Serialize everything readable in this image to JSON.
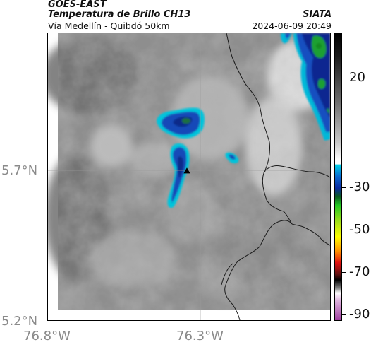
{
  "header": {
    "agency": "GOES-EAST",
    "product": "Temperatura de Brillo CH13",
    "organization": "SIATA",
    "route": "Vía Medellín - Quibdó 50km",
    "datetime": "2024-06-09 20:49"
  },
  "axes": {
    "y_ticks": [
      "5.7°N",
      "5.2°N"
    ],
    "x_ticks": [
      "76.8°W",
      "76.3°W"
    ]
  },
  "colorbar": {
    "labels": [
      "20",
      "-30",
      "-50",
      "-70",
      "-90"
    ],
    "colors": {
      "warm_gray": "#7a7a7a",
      "white": "#ffffff",
      "cyan": "#00c8e0",
      "blue": "#0a2aa0",
      "green": "#1fa81f",
      "yellow": "#ffff00",
      "red": "#e01010",
      "black": "#000000",
      "magenta": "#b04ab0"
    }
  },
  "map": {
    "marker_icon": "triangle-marker"
  }
}
